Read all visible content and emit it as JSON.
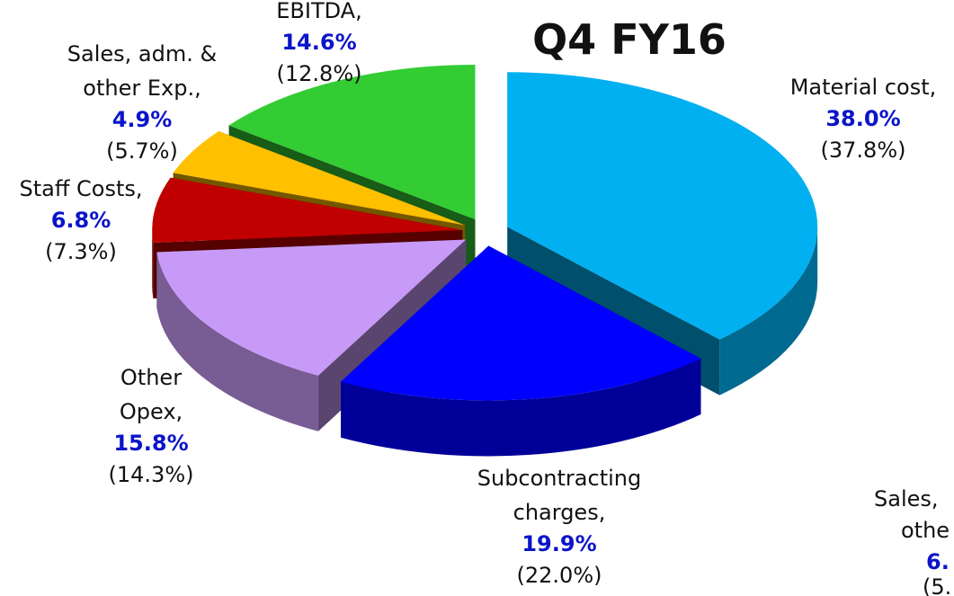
{
  "chart_data": {
    "type": "pie3d",
    "title": "Q4 FY16",
    "categories": [
      "Material cost,",
      "Subcontracting\ncharges,",
      "Other\nOpex,",
      "Staff Costs,",
      "Sales, adm. &\nother Exp.,",
      "EBITDA,"
    ],
    "values": [
      38.0,
      19.9,
      15.8,
      6.8,
      4.9,
      14.6
    ],
    "value_labels": [
      "38.0%",
      "19.9%",
      "15.8%",
      "6.8%",
      "4.9%",
      "14.6%"
    ],
    "previous_values": [
      37.8,
      22.0,
      14.3,
      7.3,
      5.7,
      12.8
    ],
    "previous_value_labels": [
      "(37.8%)",
      "(22.0%)",
      "(14.3%)",
      "(7.3%)",
      "(5.7%)",
      "(12.8%)"
    ],
    "colors": [
      "#00b0f0",
      "#0000ff",
      "#c89af7",
      "#c00000",
      "#ffc000",
      "#33cc33"
    ],
    "cropped_label": [
      "Sales,",
      "othe",
      "6.",
      "(5."
    ]
  }
}
